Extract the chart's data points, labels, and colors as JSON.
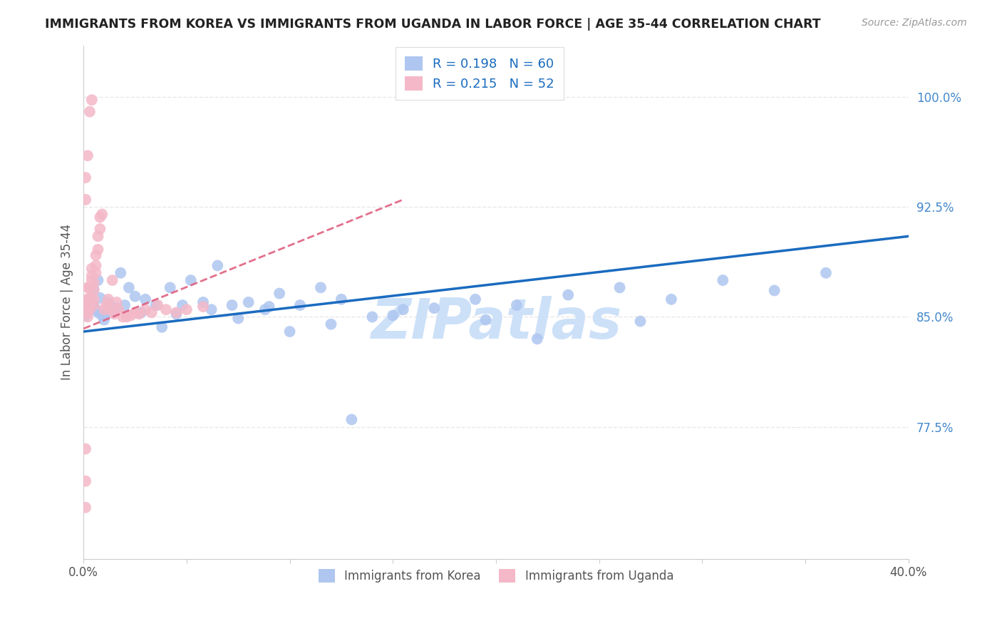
{
  "title": "IMMIGRANTS FROM KOREA VS IMMIGRANTS FROM UGANDA IN LABOR FORCE | AGE 35-44 CORRELATION CHART",
  "source": "Source: ZipAtlas.com",
  "ylabel": "In Labor Force | Age 35-44",
  "xlim": [
    0.0,
    0.4
  ],
  "ylim": [
    0.685,
    1.035
  ],
  "yticks_right": [
    0.775,
    0.85,
    0.925,
    1.0
  ],
  "ytick_right_labels": [
    "77.5%",
    "85.0%",
    "92.5%",
    "100.0%"
  ],
  "korea_color": "#aec6f0",
  "uganda_color": "#f4b8c8",
  "korea_line_color": "#1a6bbf",
  "uganda_line_color": "#e06080",
  "watermark": "ZIPatlas",
  "watermark_color": "#cce0f8",
  "background_color": "#ffffff",
  "grid_color": "#e8e8e8",
  "korea_x": [
    0.001,
    0.002,
    0.003,
    0.003,
    0.004,
    0.005,
    0.005,
    0.006,
    0.007,
    0.007,
    0.008,
    0.009,
    0.01,
    0.011,
    0.012,
    0.013,
    0.014,
    0.016,
    0.018,
    0.02,
    0.022,
    0.025,
    0.028,
    0.03,
    0.035,
    0.038,
    0.042,
    0.048,
    0.052,
    0.058,
    0.065,
    0.072,
    0.08,
    0.088,
    0.095,
    0.105,
    0.115,
    0.125,
    0.14,
    0.155,
    0.17,
    0.19,
    0.21,
    0.235,
    0.26,
    0.285,
    0.31,
    0.335,
    0.36,
    0.15,
    0.195,
    0.27,
    0.09,
    0.12,
    0.045,
    0.062,
    0.075,
    0.1,
    0.13,
    0.22
  ],
  "korea_y": [
    0.851,
    0.857,
    0.855,
    0.862,
    0.856,
    0.858,
    0.869,
    0.855,
    0.875,
    0.853,
    0.863,
    0.851,
    0.848,
    0.852,
    0.86,
    0.858,
    0.853,
    0.856,
    0.88,
    0.858,
    0.87,
    0.864,
    0.853,
    0.862,
    0.858,
    0.843,
    0.87,
    0.858,
    0.875,
    0.86,
    0.885,
    0.858,
    0.86,
    0.855,
    0.866,
    0.858,
    0.87,
    0.862,
    0.85,
    0.855,
    0.856,
    0.862,
    0.858,
    0.865,
    0.87,
    0.862,
    0.875,
    0.868,
    0.88,
    0.851,
    0.848,
    0.847,
    0.857,
    0.845,
    0.852,
    0.855,
    0.849,
    0.84,
    0.78,
    0.835
  ],
  "uganda_x": [
    0.001,
    0.001,
    0.001,
    0.002,
    0.002,
    0.002,
    0.002,
    0.003,
    0.003,
    0.003,
    0.003,
    0.004,
    0.004,
    0.004,
    0.005,
    0.005,
    0.005,
    0.005,
    0.006,
    0.006,
    0.006,
    0.007,
    0.007,
    0.008,
    0.008,
    0.009,
    0.01,
    0.011,
    0.012,
    0.013,
    0.014,
    0.015,
    0.016,
    0.017,
    0.019,
    0.021,
    0.023,
    0.025,
    0.027,
    0.03,
    0.033,
    0.036,
    0.04,
    0.045,
    0.05,
    0.058,
    0.001,
    0.001,
    0.002,
    0.003,
    0.004,
    0.002
  ],
  "uganda_y": [
    0.72,
    0.738,
    0.76,
    0.853,
    0.858,
    0.862,
    0.87,
    0.855,
    0.858,
    0.863,
    0.87,
    0.875,
    0.878,
    0.883,
    0.858,
    0.862,
    0.868,
    0.873,
    0.88,
    0.885,
    0.892,
    0.896,
    0.905,
    0.91,
    0.918,
    0.92,
    0.855,
    0.858,
    0.862,
    0.855,
    0.875,
    0.852,
    0.86,
    0.855,
    0.85,
    0.85,
    0.851,
    0.853,
    0.852,
    0.855,
    0.853,
    0.858,
    0.855,
    0.853,
    0.855,
    0.857,
    0.93,
    0.945,
    0.96,
    0.99,
    0.998,
    0.85
  ]
}
